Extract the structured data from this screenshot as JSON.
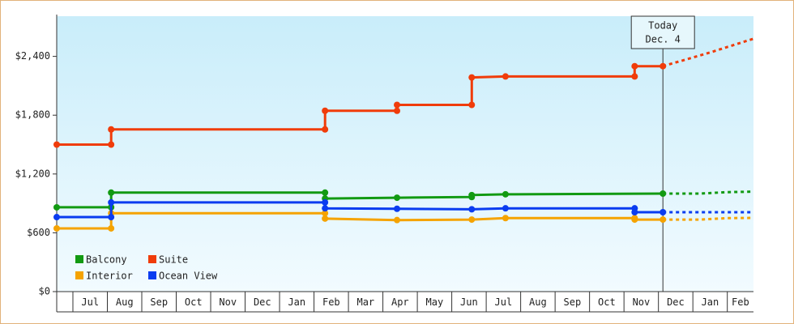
{
  "chart_data": {
    "type": "line",
    "xlim": [
      -0.47,
      19.76
    ],
    "ylim": [
      0,
      2810
    ],
    "grid": false,
    "legend": "lower left",
    "yticks": [
      {
        "value": 0,
        "label": "$0"
      },
      {
        "value": 600,
        "label": "$600"
      },
      {
        "value": 1200,
        "label": "$1,200"
      },
      {
        "value": 1800,
        "label": "$1,800"
      },
      {
        "value": 2400,
        "label": "$2,400"
      }
    ],
    "xticks": [
      {
        "value": 0,
        "label": "Jul"
      },
      {
        "value": 1,
        "label": "Aug"
      },
      {
        "value": 2,
        "label": "Sep"
      },
      {
        "value": 3,
        "label": "Oct"
      },
      {
        "value": 4,
        "label": "Nov"
      },
      {
        "value": 5,
        "label": "Dec"
      },
      {
        "value": 6,
        "label": "Jan"
      },
      {
        "value": 7,
        "label": "Feb"
      },
      {
        "value": 8,
        "label": "Mar"
      },
      {
        "value": 9,
        "label": "Apr"
      },
      {
        "value": 10,
        "label": "May"
      },
      {
        "value": 11,
        "label": "Jun"
      },
      {
        "value": 12,
        "label": "Jul"
      },
      {
        "value": 13,
        "label": "Aug"
      },
      {
        "value": 14,
        "label": "Sep"
      },
      {
        "value": 15,
        "label": "Oct"
      },
      {
        "value": 16,
        "label": "Nov"
      },
      {
        "value": 17,
        "label": "Dec"
      },
      {
        "value": 18,
        "label": "Jan"
      },
      {
        "value": 19,
        "label": "Feb"
      }
    ],
    "series": [
      {
        "name": "Balcony",
        "color": "#129a12",
        "x": [
          -0.47,
          1.11,
          1.11,
          7.32,
          7.32,
          9.41,
          11.58,
          11.58,
          12.56,
          17.13
        ],
        "values": [
          860,
          860,
          1010,
          1010,
          950,
          958,
          965,
          985,
          993,
          1000
        ],
        "forecast": {
          "x": [
            17.13,
            18.2,
            19,
            19.76
          ],
          "values": [
            1000,
            1000,
            1015,
            1020
          ]
        }
      },
      {
        "name": "Suite",
        "color": "#f03c0a",
        "x": [
          -0.47,
          1.11,
          1.11,
          7.32,
          7.32,
          9.41,
          9.41,
          11.58,
          11.58,
          12.56,
          16.31,
          16.31,
          17.13
        ],
        "values": [
          1500,
          1500,
          1655,
          1655,
          1845,
          1845,
          1905,
          1905,
          2185,
          2195,
          2195,
          2300,
          2300
        ],
        "forecast": {
          "x": [
            17.13,
            18.5,
            19.76
          ],
          "values": [
            2300,
            2440,
            2580
          ]
        }
      },
      {
        "name": "Interior",
        "color": "#f5a300",
        "x": [
          -0.47,
          1.11,
          1.11,
          7.32,
          7.32,
          9.41,
          11.58,
          12.56,
          16.31,
          16.31,
          17.13
        ],
        "values": [
          645,
          645,
          800,
          800,
          745,
          730,
          735,
          750,
          750,
          735,
          735
        ],
        "forecast": {
          "x": [
            17.13,
            18.2,
            19,
            19.76
          ],
          "values": [
            735,
            735,
            750,
            752
          ]
        }
      },
      {
        "name": "Ocean View",
        "color": "#0a3cf0",
        "x": [
          -0.47,
          1.11,
          1.11,
          7.32,
          7.32,
          9.41,
          11.58,
          12.56,
          16.31,
          16.31,
          17.13
        ],
        "values": [
          760,
          760,
          910,
          910,
          850,
          845,
          840,
          850,
          850,
          810,
          810
        ],
        "forecast": {
          "x": [
            17.13,
            19.76
          ],
          "values": [
            810,
            810
          ]
        }
      }
    ],
    "annotation": {
      "x": 17.13,
      "lines": [
        "Today",
        "Dec. 4"
      ]
    }
  }
}
